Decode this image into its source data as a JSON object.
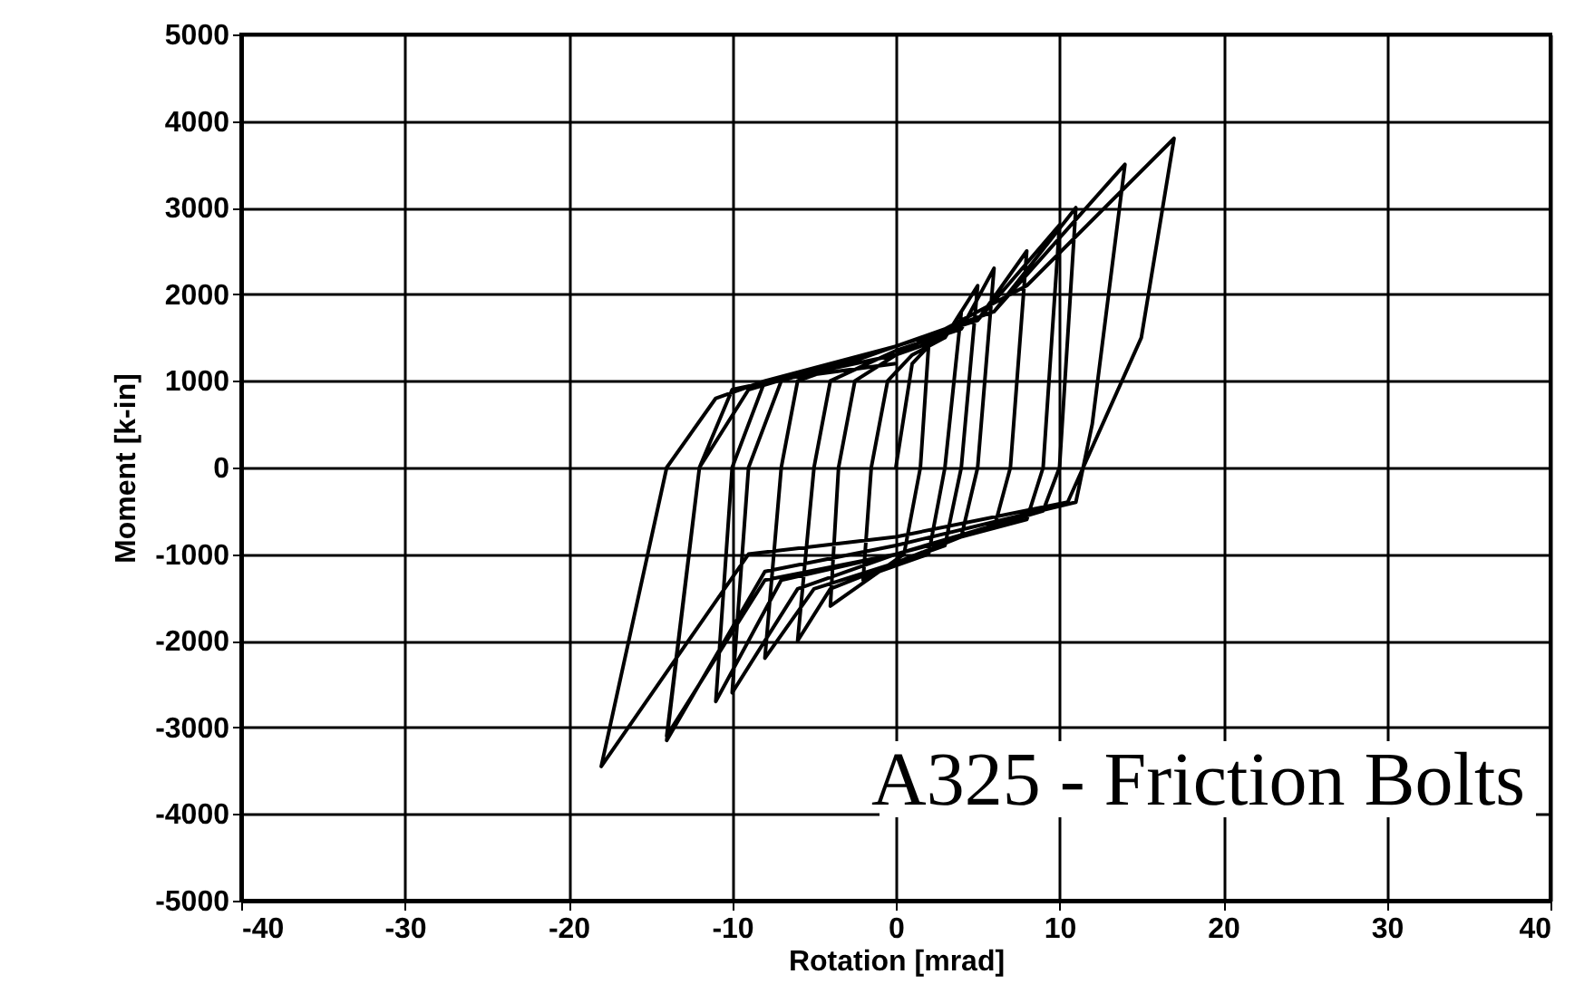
{
  "chart_data": {
    "type": "line",
    "xlabel": "Rotation [mrad]",
    "ylabel": "Moment [k-in]",
    "annotations": [
      "A325 - Friction Bolts"
    ],
    "xlim": [
      -40,
      40
    ],
    "ylim": [
      -5000,
      5000
    ],
    "xticks": [
      -40,
      -30,
      -20,
      -10,
      0,
      10,
      20,
      30,
      40
    ],
    "yticks": [
      -5000,
      -4000,
      -3000,
      -2000,
      -1000,
      0,
      1000,
      2000,
      3000,
      4000,
      5000
    ],
    "grid": true,
    "marker": "none",
    "line_style": "solid",
    "series": [
      {
        "color": "#000000",
        "x": [
          0,
          1,
          2,
          1.5,
          0.5,
          -1,
          -2,
          -1.5,
          -0.5,
          1,
          3,
          4,
          3,
          2,
          -1,
          -4,
          -3.5,
          -2.5,
          0,
          3,
          5,
          4,
          3,
          0,
          -4,
          -6,
          -5,
          -4,
          0,
          4,
          6,
          5,
          4,
          0,
          -5,
          -8,
          -7,
          -6,
          0,
          5,
          8,
          7,
          6,
          0,
          -6,
          -10,
          -9,
          -7,
          0,
          5,
          10,
          9,
          8,
          0,
          -7,
          -11,
          -10,
          -8,
          0,
          6,
          11,
          10,
          9,
          0,
          -8,
          -14,
          -12,
          -9,
          0,
          6,
          14,
          12,
          11,
          0,
          -8,
          -14,
          -12,
          -10,
          0,
          8,
          17,
          15,
          10.5,
          0,
          -9,
          -18,
          -14,
          -11,
          -8,
          0
        ],
        "values": [
          0,
          1200,
          1400,
          0,
          -1000,
          -1200,
          -1300,
          0,
          1000,
          1300,
          1500,
          1800,
          0,
          -1000,
          -1200,
          -1600,
          0,
          1000,
          1300,
          1500,
          2100,
          0,
          -900,
          -1100,
          -1400,
          -2000,
          0,
          1000,
          1350,
          1600,
          2300,
          0,
          -800,
          -1100,
          -1400,
          -2200,
          0,
          1000,
          1400,
          1700,
          2500,
          0,
          -700,
          -1000,
          -1400,
          -2600,
          0,
          1000,
          1400,
          1700,
          2800,
          0,
          -600,
          -1000,
          -1300,
          -2700,
          0,
          1000,
          1400,
          1800,
          3000,
          0,
          -500,
          -1000,
          -1300,
          -3100,
          0,
          900,
          1400,
          1800,
          3500,
          500,
          -400,
          -900,
          -1200,
          -3150,
          0,
          900,
          1300,
          2100,
          3800,
          1500,
          -400,
          -800,
          -1000,
          -3450,
          0,
          800,
          1000,
          1200
        ]
      }
    ]
  }
}
